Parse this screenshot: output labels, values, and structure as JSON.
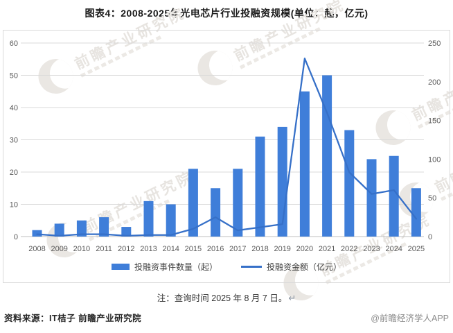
{
  "title": "图表4：2008-2025年光电芯片行业投融资规模(单位：起，亿元)",
  "chart_data": {
    "type": "bar",
    "title": "图表4：2008-2025年光电芯片行业投融资规模(单位：起，亿元)",
    "categories": [
      "2008",
      "2009",
      "2010",
      "2011",
      "2012",
      "2013",
      "2014",
      "2015",
      "2016",
      "2017",
      "2018",
      "2019",
      "2020",
      "2021",
      "2022",
      "2023",
      "2024",
      "2025"
    ],
    "series": [
      {
        "name": "投融资事件数量（起）",
        "type": "bar",
        "axis": "left",
        "values": [
          2,
          4,
          5,
          6,
          3,
          11,
          10,
          21,
          15,
          21,
          31,
          34,
          45,
          50,
          33,
          24,
          25,
          15
        ]
      },
      {
        "name": "投融资金额（亿元）",
        "type": "line",
        "axis": "right",
        "values": [
          3,
          1,
          3,
          3,
          1,
          2,
          2,
          10,
          25,
          8,
          12,
          16,
          230,
          160,
          83,
          55,
          60,
          23
        ]
      }
    ],
    "left_axis": {
      "min": 0,
      "max": 60,
      "ticks": [
        0,
        10,
        20,
        30,
        40,
        50,
        60
      ]
    },
    "right_axis": {
      "min": 0,
      "max": 250,
      "ticks": [
        0,
        50,
        100,
        150,
        200,
        250
      ]
    },
    "grid": true,
    "legend_position": "bottom",
    "colors": {
      "bar": "#3F7ED9",
      "line": "#3670C8",
      "gridline": "#d9d9d9",
      "axis_line": "#bfbfbf",
      "tick_text": "#595959"
    }
  },
  "note": {
    "text": "注：查询时间 2025 年 8 月 7 日。",
    "return_mark": "↵"
  },
  "footer": {
    "source": "资料来源：IT桔子 前瞻产业研究院",
    "credit": "@前瞻经济学人APP"
  },
  "watermark": {
    "text": "前瞻产业研究院",
    "logo": "qianzhan-logo"
  }
}
